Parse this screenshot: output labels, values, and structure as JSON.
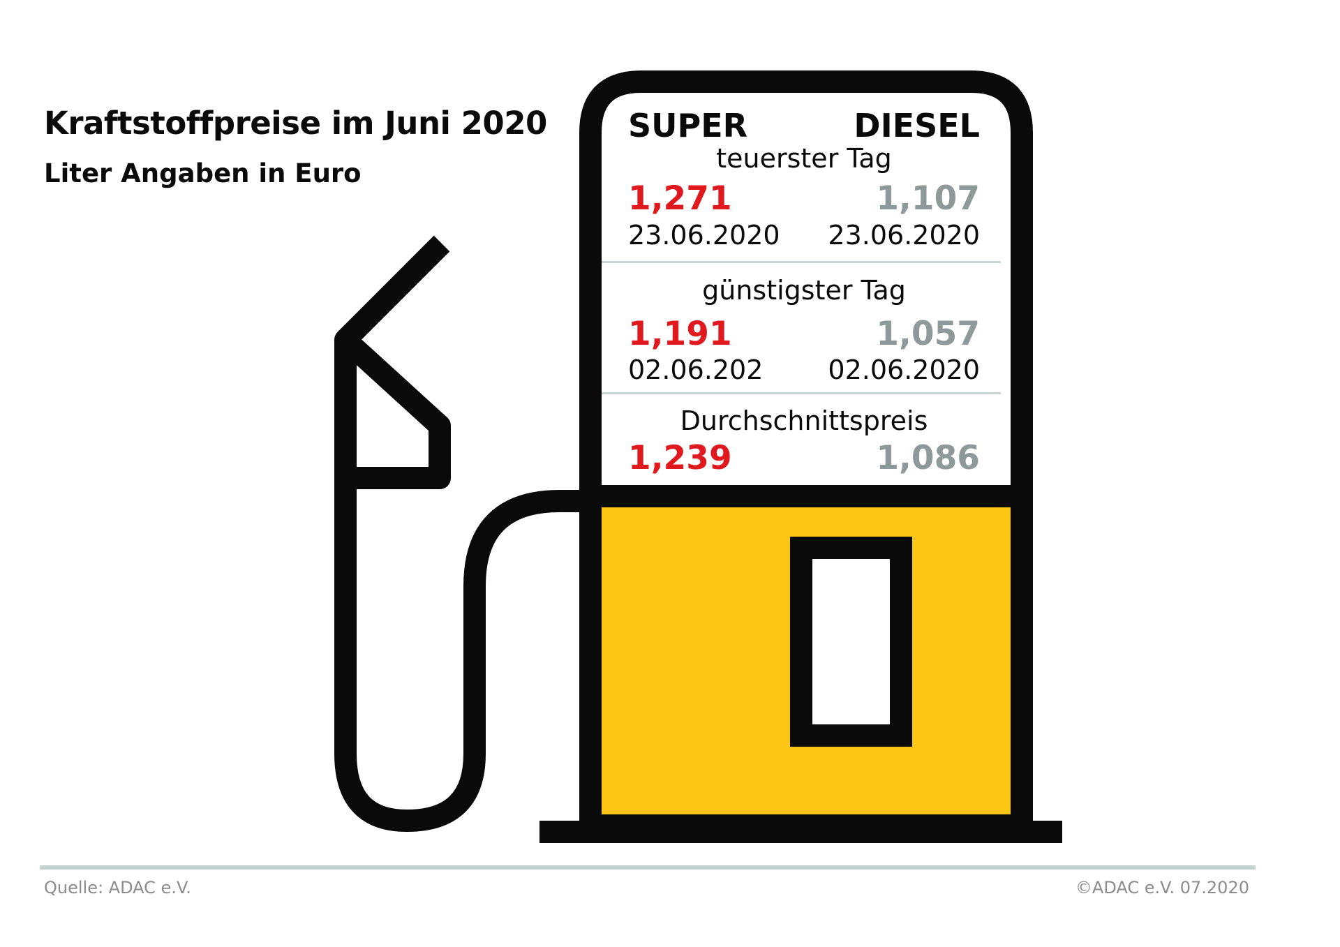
{
  "header": {
    "title": "Kraftstoffpreise im Juni 2020",
    "subtitle": "Liter Angaben in Euro"
  },
  "board": {
    "columns": {
      "left": "SUPER",
      "right": "DIESEL"
    },
    "sections": [
      {
        "label": "teuerster Tag",
        "super": {
          "price": "1,271",
          "date": "23.06.2020"
        },
        "diesel": {
          "price": "1,107",
          "date": "23.06.2020"
        }
      },
      {
        "label": "günstigster Tag",
        "super": {
          "price": "1,191",
          "date": "02.06.202"
        },
        "diesel": {
          "price": "1,057",
          "date": "02.06.2020"
        }
      },
      {
        "label": "Durchschnittspreis",
        "super": {
          "price": "1,239"
        },
        "diesel": {
          "price": "1,086"
        }
      }
    ]
  },
  "footer": {
    "source": "Quelle: ADAC e.V.",
    "copyright": "©ADAC e.V.  07.2020"
  },
  "colors": {
    "super_price": "#e0191f",
    "diesel_price": "#8e9a9a",
    "pump_body": "#fdc614",
    "outline": "#0a0a0a",
    "divider": "#c9d3d2"
  },
  "icons": [
    "fuel-pump-icon",
    "fuel-nozzle-icon"
  ]
}
